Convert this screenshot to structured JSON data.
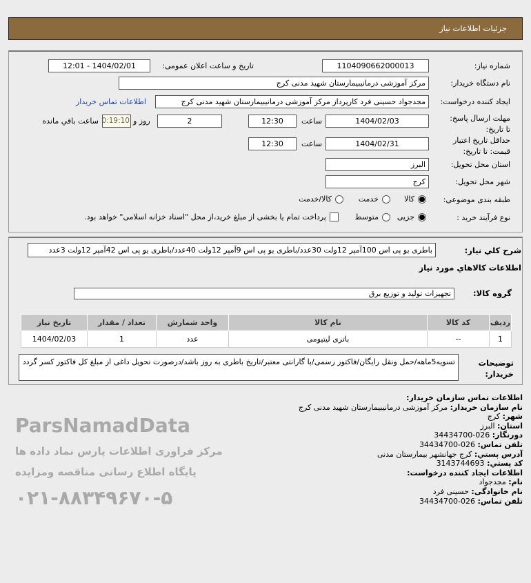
{
  "header": {
    "title": "جزئيات اطلاعات نياز"
  },
  "info": {
    "need_number_label": "شماره نیاز:",
    "need_number": "1104090662000013",
    "announce_label": "تاریخ و ساعت اعلان عمومی:",
    "announce_value": "1404/02/01 - 12:01",
    "buyer_label": "نام دستگاه خریدار:",
    "buyer_value": "مرکز آموزشی درمانیبیمارستان شهید مدنی کرج",
    "creator_label": "ایجاد کننده درخواست:",
    "creator_value": "مجدجواد حسینی فرد کارپرداز مرکز آموزشی درمانیبیمارستان شهید مدنی کرج",
    "contact_link": "اطلاعات تماس خریدار",
    "deadline_label": "مهلت ارسال پاسخ: تا تاریخ:",
    "deadline_date": "1404/02/03",
    "time_label": "ساعت",
    "deadline_time": "12:30",
    "days": "2",
    "days_label": "روز و",
    "remaining": "00:19:10",
    "remaining_label": "ساعت باقي مانده",
    "validity_label": "حداقل تاریخ اعتبار قیمت: تا تاریخ:",
    "validity_date": "1404/02/31",
    "validity_time": "12:30",
    "province_label": "استان محل تحویل:",
    "province": "البرز",
    "city_label": "شهر محل تحویل:",
    "city": "کرج",
    "category_label": "طبقه بندی موضوعی:",
    "category_options": [
      "کالا",
      "خدمت",
      "کالا/خدمت"
    ],
    "category_selected": "کالا",
    "process_label": "نوع فرآیند خرید :",
    "process_options": [
      "جزیی",
      "متوسط"
    ],
    "process_selected": "جزیی",
    "payment_note": "پرداخت تمام یا بخشی از مبلغ خرید،از محل \"اسناد خزانه اسلامی\" خواهد بود.",
    "payment_checked": false
  },
  "details": {
    "summary_label": "شرح کلي نياز:",
    "summary": "باطری یو پی اس 100آمپر 12ولت 30عدد/باطری یو پی اس 9آمپر 12ولت 40عدد/باطری یو پی اس 42آمپر 12ولت 3عدد",
    "goods_heading": "اطلاعات کالاهاي مورد نياز",
    "group_label": "گروه کالا:",
    "group_value": "تجهیزات تولید و توزیع برق",
    "table": {
      "headers": [
        "ردیف",
        "کد کالا",
        "نام کالا",
        "واحد شمارش",
        "تعداد / مقدار",
        "تاریخ نیاز"
      ],
      "rows": [
        [
          "1",
          "--",
          "باتری لیتیومی",
          "عدد",
          "1",
          "1404/02/03"
        ]
      ]
    },
    "notes_label": "توضیحات خریدار:",
    "notes": "تسویه5ماهه/حمل ونقل رایگان/فاکتور رسمی/با گارانتی معتبر/تاریخ باطری به روز باشد/درصورت تحویل داغی از مبلغ کل فاکتور کسر گردد"
  },
  "contact": {
    "heading": "اطلاعات تماس سازمان خریدار:",
    "org_label": "نام سازمان خریدار:",
    "org": "مرکز آموزشی درمانیبیمارستان شهید مدنی کرج",
    "city_label": "شهر:",
    "city": "کرج",
    "province_label": "استان:",
    "province": "البرز",
    "fax_label": "دورنگار:",
    "fax": "026-34434700",
    "phone_label": "تلفن تماس:",
    "phone": "026-34434700",
    "address_label": "آدرس پستي:",
    "address": "کرج جهانشهر بیمارستان مدنی",
    "postal_label": "کد پستي:",
    "postal": "3143744693",
    "creator_heading": "اطلاعات ایجاد کننده درخواست:",
    "name_label": "نام:",
    "name": "مجدجواد",
    "family_label": "نام خانوادگی:",
    "family": "حسینی فرد",
    "creator_phone_label": "تلفن تماس:",
    "creator_phone": "026-34434700"
  },
  "watermark": {
    "text1": "ParsNamadData",
    "text2": "مرکز فراوری اطلاعات پارس نماد داده ها",
    "text3": "پایگاه اطلاع رسانی مناقصه ومزایده",
    "text4": "۰۲۱-۸۸۳۴۹۶۷۰-۵"
  }
}
